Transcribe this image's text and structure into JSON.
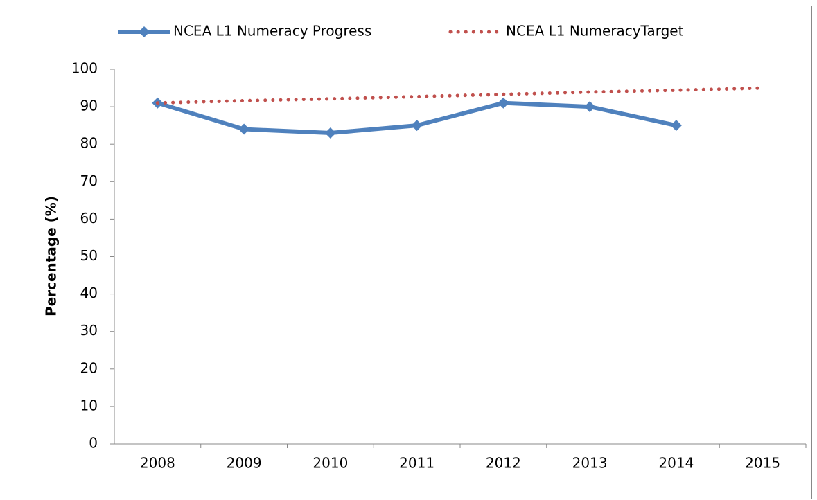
{
  "chart_data": {
    "type": "line",
    "y_label": "Percentage (%)",
    "categories": [
      "2008",
      "2009",
      "2010",
      "2011",
      "2012",
      "2013",
      "2014",
      "2015"
    ],
    "series": [
      {
        "name": "NCEA L1 Numeracy Progress",
        "color": "#4f81bd",
        "line_style": "solid",
        "marker": "diamond",
        "values": [
          91,
          84,
          83,
          85,
          91,
          90,
          85,
          null
        ]
      },
      {
        "name": "NCEA L1 NumeracyTarget",
        "color": "#c0504d",
        "line_style": "dotted",
        "marker": "none",
        "values": [
          91,
          91.6,
          92.1,
          92.7,
          93.3,
          93.9,
          94.4,
          95
        ]
      }
    ],
    "ylim": [
      0,
      100
    ],
    "yticks": [
      0,
      10,
      20,
      30,
      40,
      50,
      60,
      70,
      80,
      90,
      100
    ],
    "grid": false,
    "legend": "top"
  }
}
